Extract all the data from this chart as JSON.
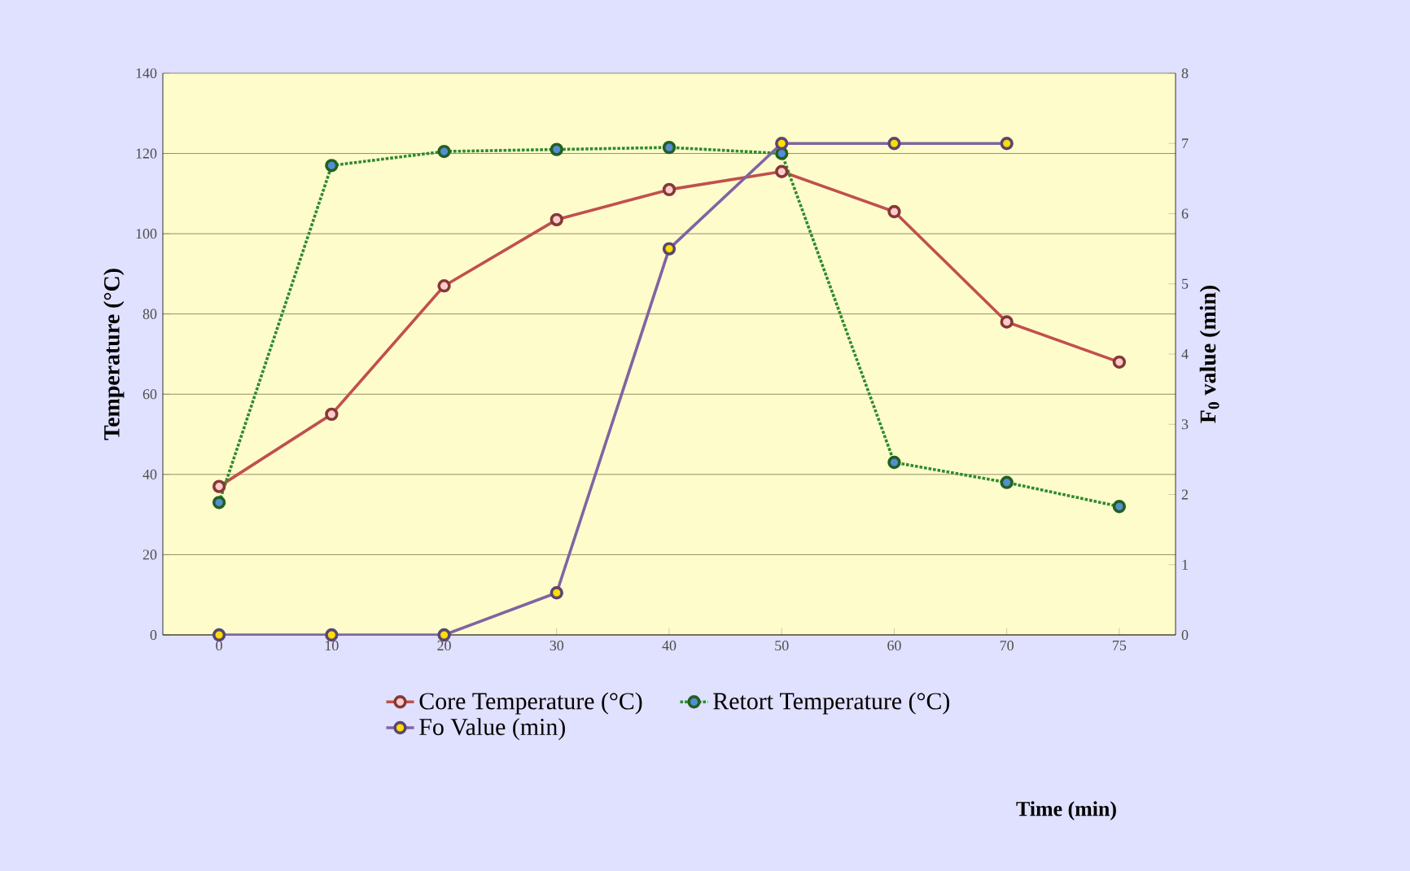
{
  "chart_data": {
    "type": "line",
    "annotations": [
      "Time (min)"
    ],
    "ylabel": "Temperature (°C)",
    "y2label": "F$_{0}$ value (min)",
    "categories": [
      "0",
      "10",
      "20",
      "30",
      "40",
      "50",
      "60",
      "70",
      "75"
    ],
    "series": [
      {
        "name": "Core Temperature (°C)",
        "color": "#c0504d",
        "line_style": "solid",
        "values": [
          37,
          55,
          87,
          103.5,
          111,
          115.5,
          105.5,
          78,
          68
        ]
      },
      {
        "name": "Retort Temperature (°C)",
        "color": "#2e8b2e",
        "line_style": "dotted",
        "values": [
          33,
          117,
          120.5,
          121,
          121.5,
          120,
          43,
          38,
          32
        ]
      },
      {
        "name": "Fo Value (min)",
        "color": "#8064a2",
        "line_style": "solid",
        "axis": "y2",
        "values": [
          0,
          0,
          0,
          0.6,
          5.5,
          7,
          7,
          7,
          null
        ]
      }
    ],
    "ylim": [
      0,
      140
    ],
    "yticks": [
      0,
      20,
      40,
      60,
      80,
      100,
      120,
      140
    ],
    "y2lim": [
      0,
      8
    ],
    "y2ticks": [
      0,
      1,
      2,
      3,
      4,
      5,
      6,
      7,
      8
    ],
    "grid": "y",
    "legend": "bottom",
    "marker": "circle"
  }
}
